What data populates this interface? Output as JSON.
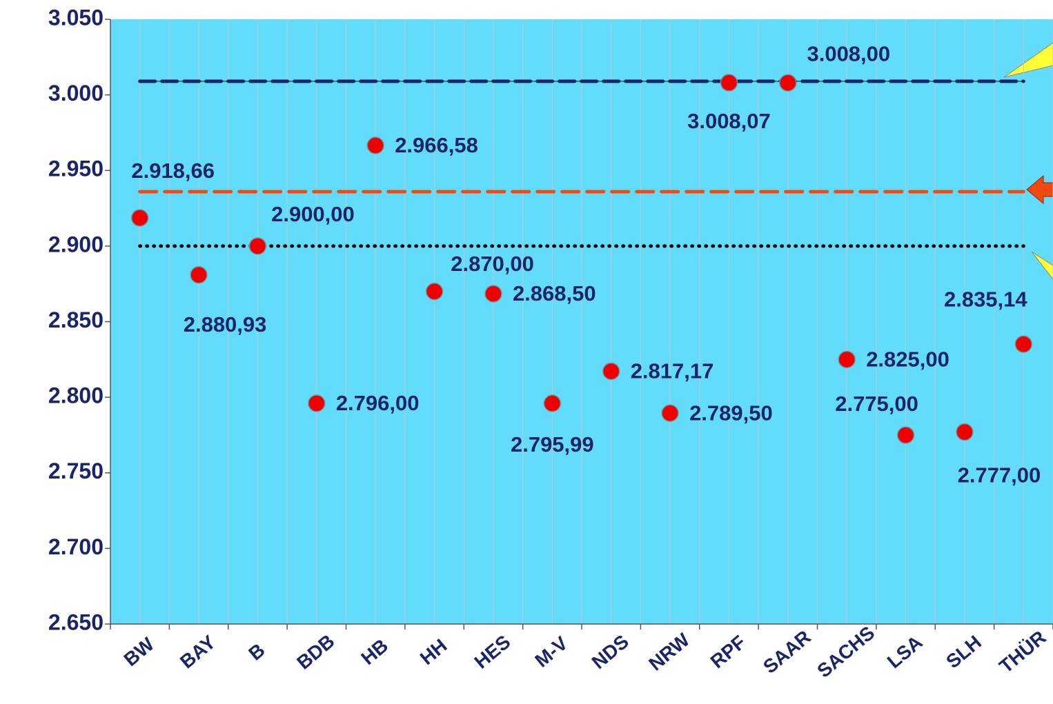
{
  "chart_data": {
    "type": "scatter",
    "categories": [
      "BW",
      "BAY",
      "B",
      "BDB",
      "HB",
      "HH",
      "HES",
      "M-V",
      "NDS",
      "NRW",
      "RPF",
      "SAAR",
      "SACHS",
      "LSA",
      "SLH",
      "THÜR"
    ],
    "values": [
      2918.66,
      2880.93,
      2900,
      2796,
      2966.58,
      2870,
      2868.5,
      2795.99,
      2817.17,
      2789.5,
      3008.07,
      3008,
      2825,
      2775,
      2777,
      2835.14
    ],
    "value_labels": [
      "2.918,66",
      "2.880,93",
      "2.900,00",
      "2.796,00",
      "2.966,58",
      "2.870,00",
      "2.868,50",
      "2.795,99",
      "2.817,17",
      "2.789,50",
      "3.008,07",
      "3.008,00",
      "2.825,00",
      "2.775,00",
      "2.777,00",
      "2.835,14"
    ],
    "color": "#ee0000",
    "background": "#62dcfa",
    "ylim": [
      2650,
      3050
    ],
    "yticks": [
      {
        "value": 2650,
        "label": "2.650"
      },
      {
        "value": 2700,
        "label": "2.700"
      },
      {
        "value": 2750,
        "label": "2.750"
      },
      {
        "value": 2800,
        "label": "2.800"
      },
      {
        "value": 2850,
        "label": "2.850"
      },
      {
        "value": 2900,
        "label": "2.900"
      },
      {
        "value": 2950,
        "label": "2.950"
      },
      {
        "value": 3000,
        "label": "3.000"
      },
      {
        "value": 3050,
        "label": "3.050"
      }
    ],
    "reference_lines": [
      {
        "value": 3009,
        "color": "#1b2466",
        "style": "dashed"
      },
      {
        "value": 2936,
        "color": "#f04a10",
        "style": "dashed"
      },
      {
        "value": 2900,
        "color": "#000000",
        "style": "dotted"
      }
    ],
    "grid": true
  }
}
